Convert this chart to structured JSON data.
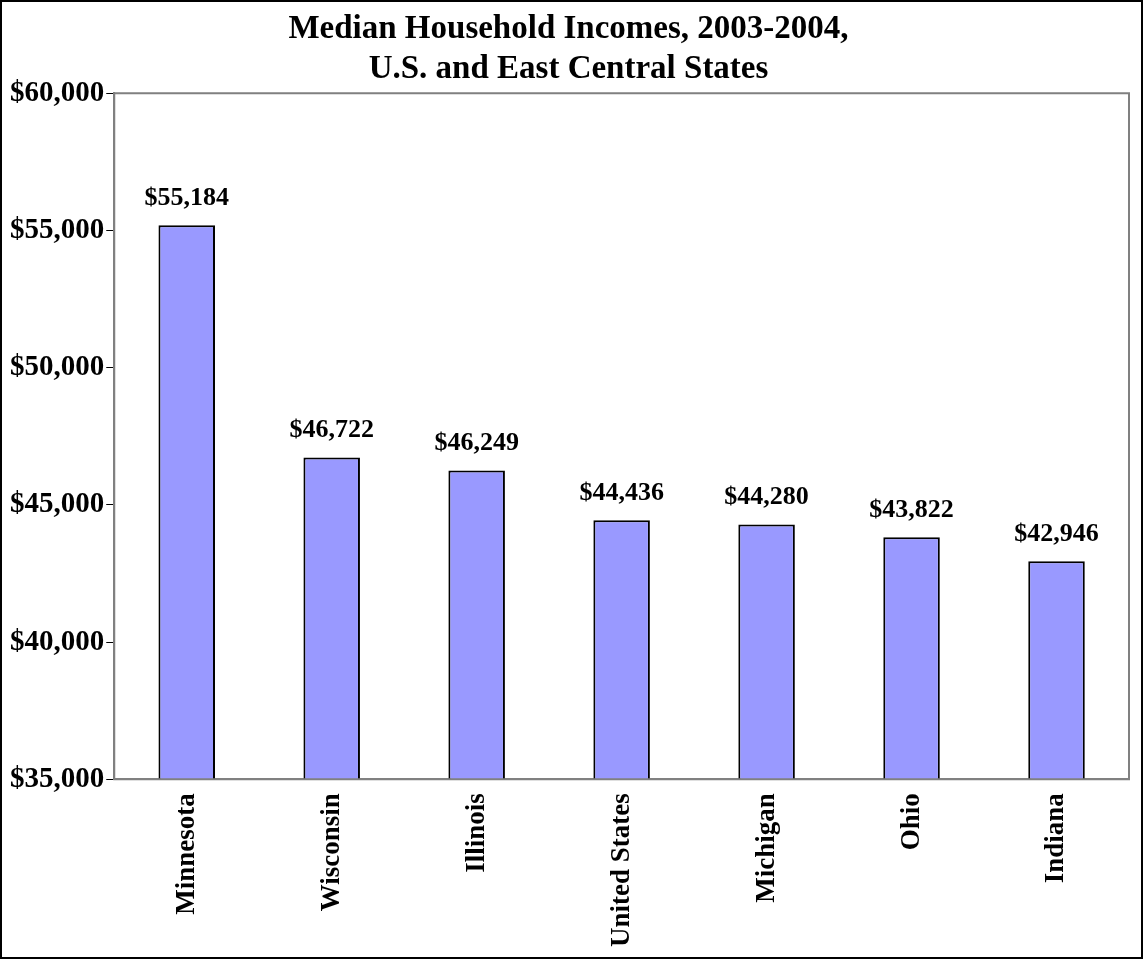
{
  "chart_data": {
    "type": "bar",
    "title": "Median Household Incomes, 2003-2004,\nU.S. and East Central States",
    "categories": [
      "Minnesota",
      "Wisconsin",
      "Illinois",
      "United States",
      "Michigan",
      "Ohio",
      "Indiana"
    ],
    "values": [
      55184,
      46722,
      46249,
      44436,
      44280,
      43822,
      42946
    ],
    "value_labels": [
      "$55,184",
      "$46,722",
      "$46,249",
      "$44,436",
      "$44,280",
      "$43,822",
      "$42,946"
    ],
    "color": "#9999ff",
    "ylim": [
      35000,
      60000
    ],
    "yticks": [
      {
        "value": 35000,
        "label": "$35,000"
      },
      {
        "value": 40000,
        "label": "$40,000"
      },
      {
        "value": 45000,
        "label": "$45,000"
      },
      {
        "value": 50000,
        "label": "$50,000"
      },
      {
        "value": 55000,
        "label": "$55,000"
      },
      {
        "value": 60000,
        "label": "$60,000"
      }
    ],
    "grid": false,
    "legend": false
  }
}
